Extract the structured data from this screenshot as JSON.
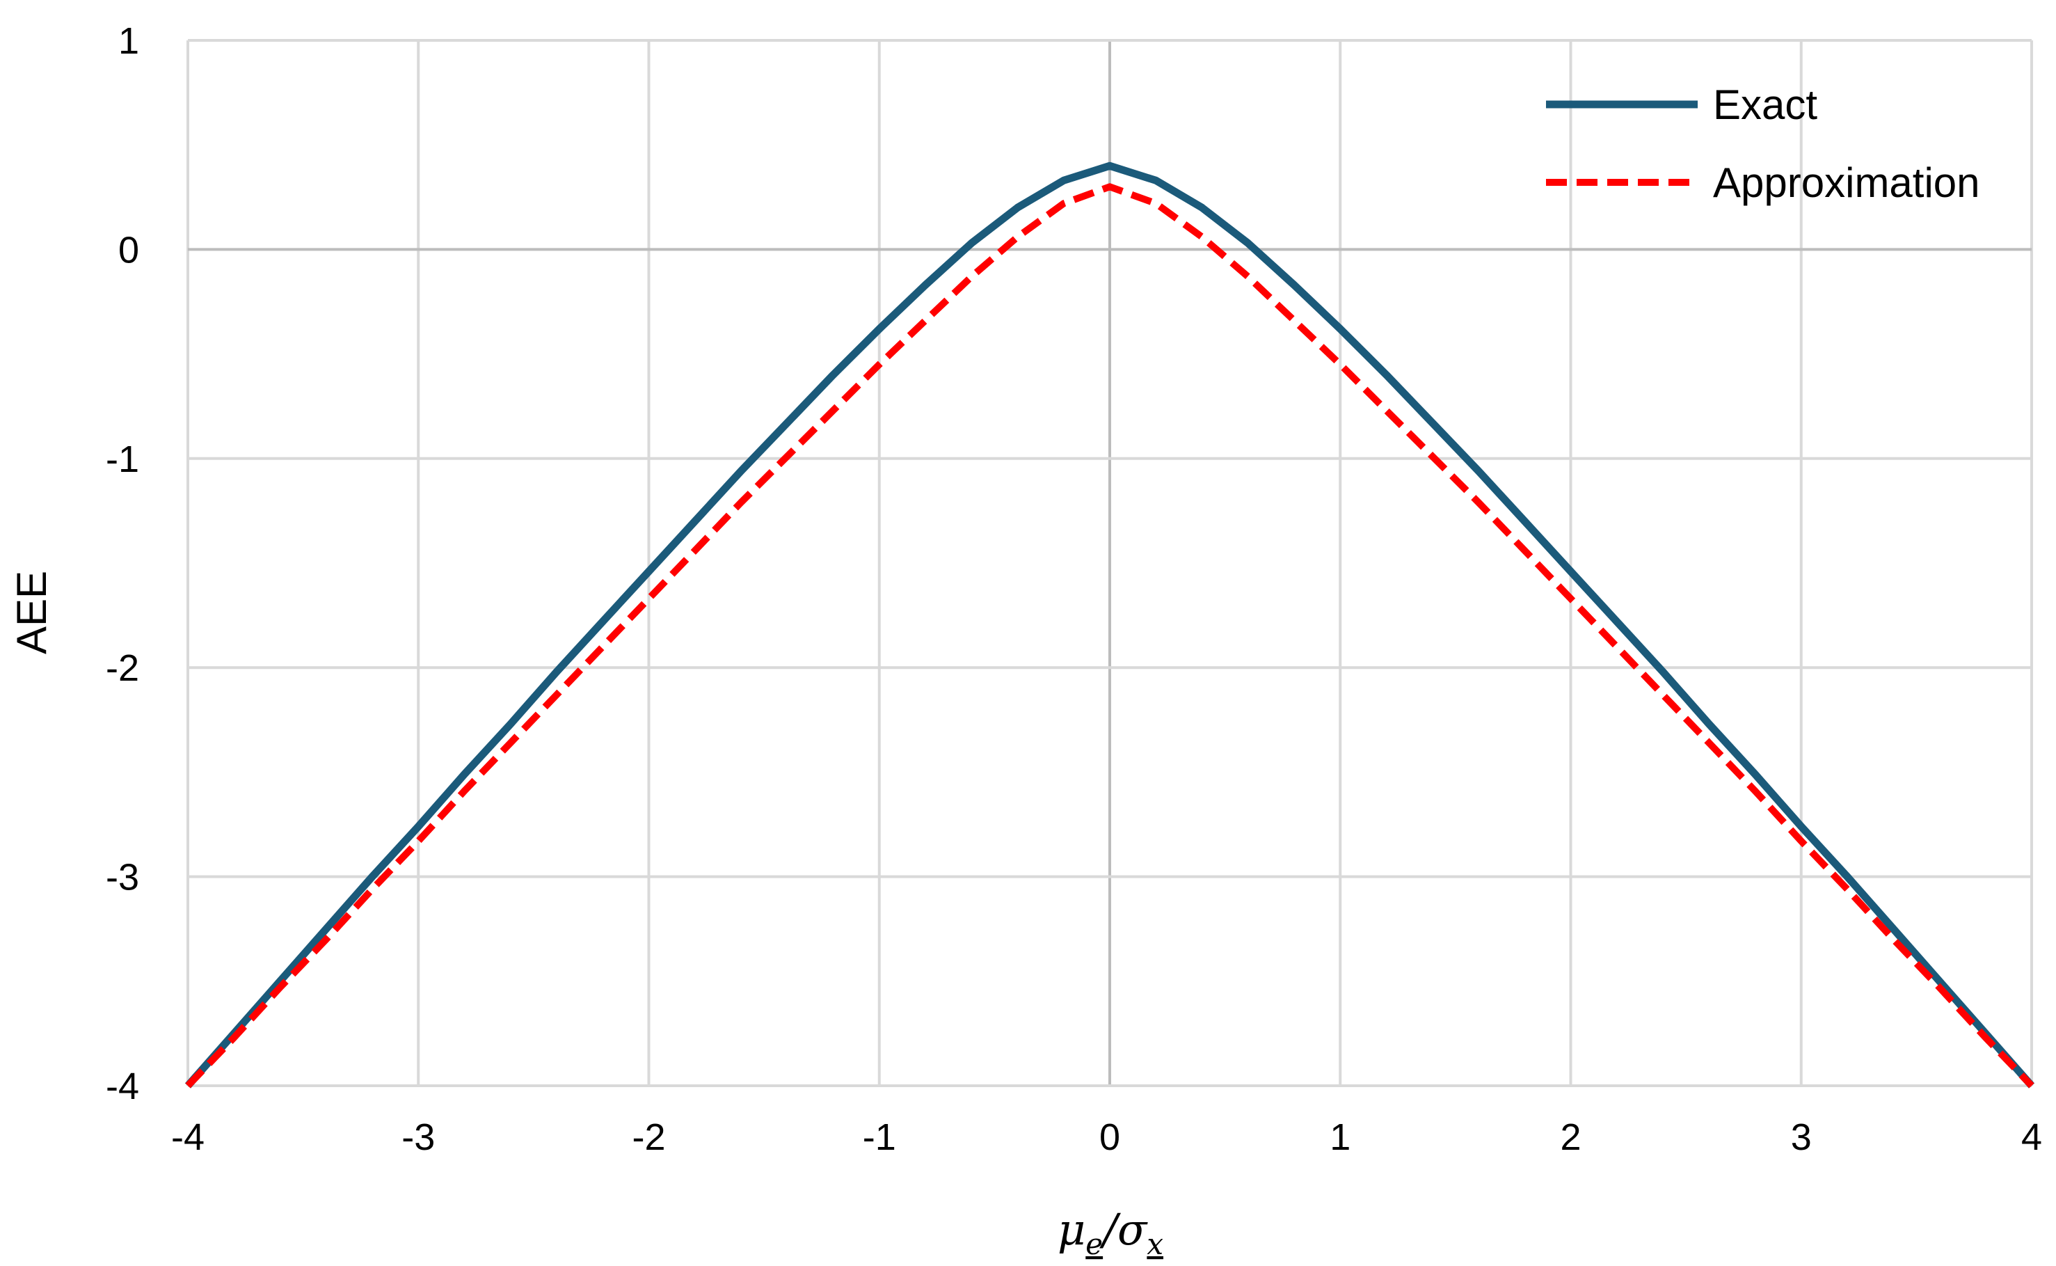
{
  "chart_data": {
    "type": "line",
    "title": "",
    "ylabel": "AEE",
    "xlabel": {
      "mu": "μ",
      "mu_sub": "e",
      "slash": "/",
      "sigma": "σ",
      "sigma_sub": "x"
    },
    "xlim": [
      -4,
      4
    ],
    "ylim": [
      -4,
      1
    ],
    "xticks": [
      -4,
      -3,
      -2,
      -1,
      0,
      1,
      2,
      3,
      4
    ],
    "yticks": [
      1,
      0,
      -1,
      -2,
      -3,
      -4
    ],
    "grid": true,
    "legend_position": "top-right",
    "series": [
      {
        "name": "Exact",
        "color": "#1b5a7a",
        "style": "solid",
        "x": [
          -4,
          -3.8,
          -3.6,
          -3.4,
          -3.2,
          -3,
          -2.8,
          -2.6,
          -2.4,
          -2.2,
          -2,
          -1.8,
          -1.6,
          -1.4,
          -1.2,
          -1,
          -0.8,
          -0.6,
          -0.4,
          -0.2,
          0,
          0.2,
          0.4,
          0.6,
          0.8,
          1,
          1.2,
          1.4,
          1.6,
          1.8,
          2,
          2.2,
          2.4,
          2.6,
          2.8,
          3,
          3.2,
          3.4,
          3.6,
          3.8,
          4
        ],
        "y": [
          -4.0,
          -3.75,
          -3.5,
          -3.25,
          -3.0,
          -2.76,
          -2.51,
          -2.27,
          -2.02,
          -1.78,
          -1.54,
          -1.3,
          -1.06,
          -0.83,
          -0.6,
          -0.38,
          -0.17,
          0.03,
          0.2,
          0.33,
          0.4,
          0.33,
          0.2,
          0.03,
          -0.17,
          -0.38,
          -0.6,
          -0.83,
          -1.06,
          -1.3,
          -1.54,
          -1.78,
          -2.02,
          -2.27,
          -2.51,
          -2.76,
          -3.0,
          -3.25,
          -3.5,
          -3.75,
          -4.0
        ]
      },
      {
        "name": "Approximation",
        "color": "#ff0000",
        "style": "dashed",
        "x": [
          -4,
          -3.8,
          -3.6,
          -3.4,
          -3.2,
          -3,
          -2.8,
          -2.6,
          -2.4,
          -2.2,
          -2,
          -1.8,
          -1.6,
          -1.4,
          -1.2,
          -1,
          -0.8,
          -0.6,
          -0.4,
          -0.2,
          0,
          0.2,
          0.4,
          0.6,
          0.8,
          1,
          1.2,
          1.4,
          1.6,
          1.8,
          2,
          2.2,
          2.4,
          2.6,
          2.8,
          3,
          3.2,
          3.4,
          3.6,
          3.8,
          4
        ],
        "y": [
          -4.0,
          -3.77,
          -3.53,
          -3.3,
          -3.06,
          -2.83,
          -2.59,
          -2.36,
          -2.13,
          -1.9,
          -1.67,
          -1.44,
          -1.21,
          -0.99,
          -0.77,
          -0.55,
          -0.34,
          -0.13,
          0.06,
          0.22,
          0.3,
          0.22,
          0.06,
          -0.13,
          -0.34,
          -0.55,
          -0.77,
          -0.99,
          -1.21,
          -1.44,
          -1.67,
          -1.9,
          -2.13,
          -2.36,
          -2.59,
          -2.83,
          -3.06,
          -3.3,
          -3.53,
          -3.77,
          -4.0
        ]
      }
    ]
  }
}
